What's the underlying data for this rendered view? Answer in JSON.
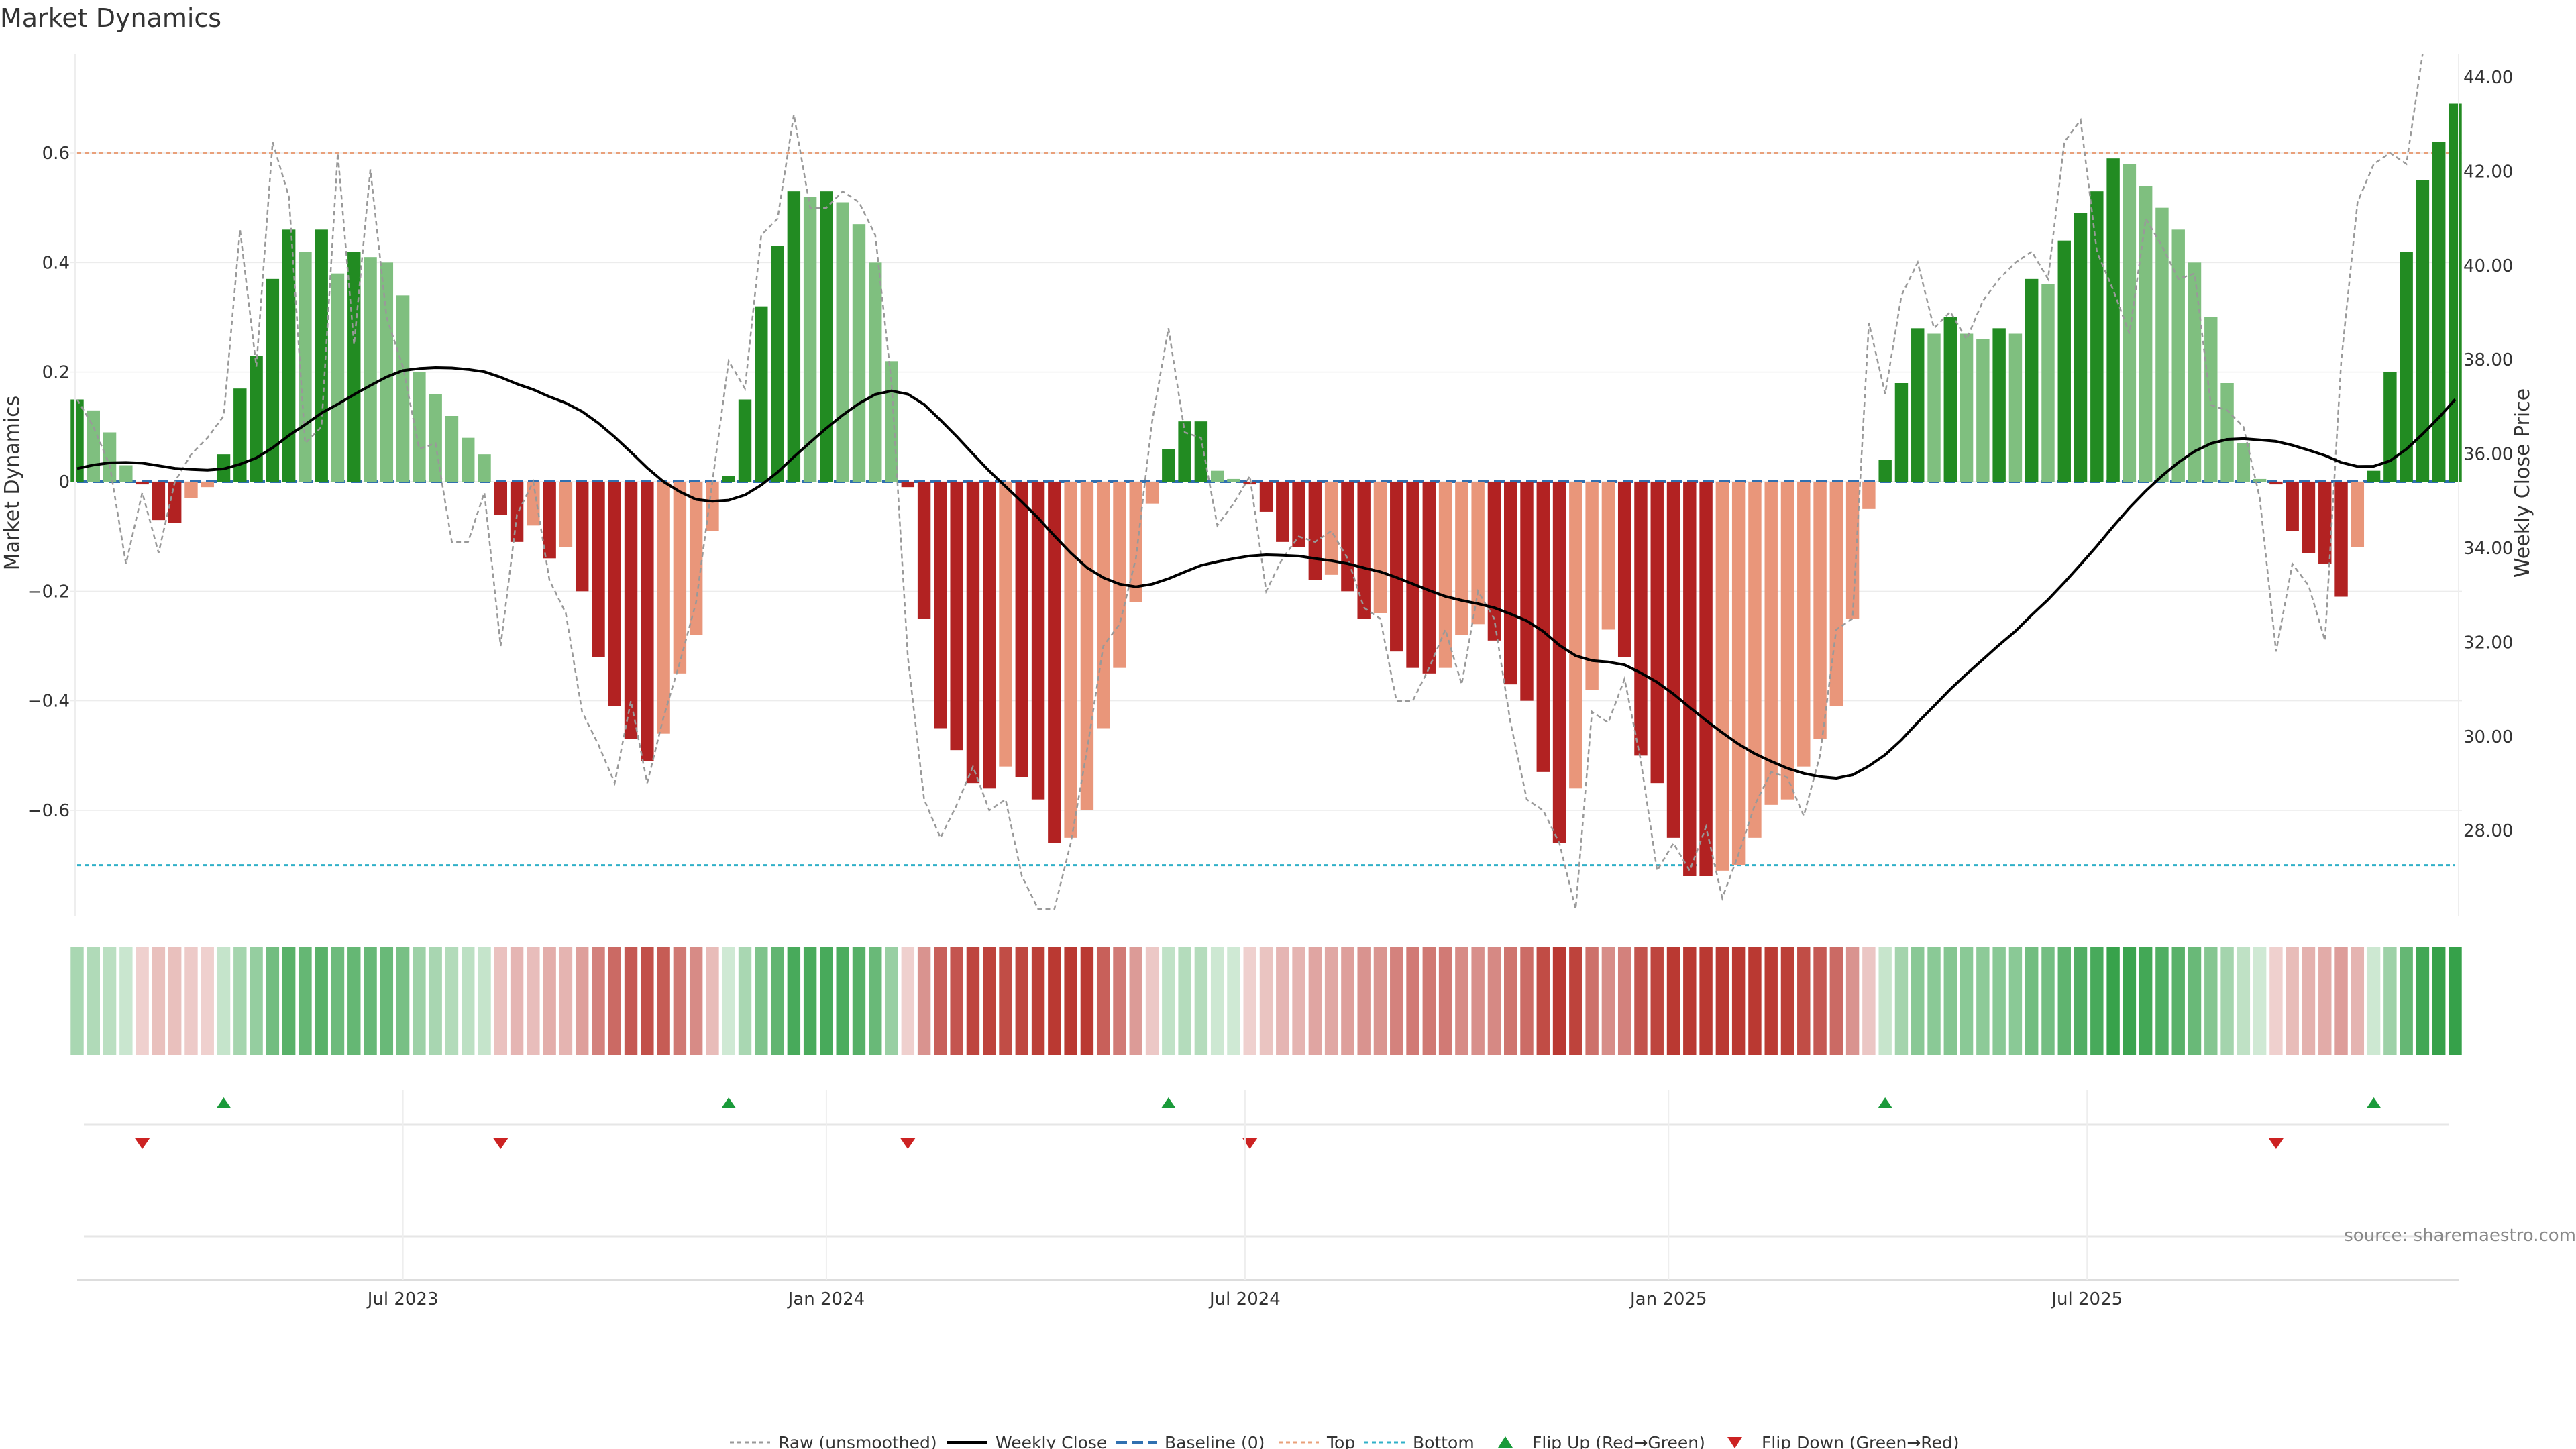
{
  "chart_data": {
    "type": "bar",
    "title": "Market Dynamics",
    "ylabel_left": "Market Dynamics",
    "ylabel_right": "Weekly Close Price",
    "source": "source: sharemaestro.com",
    "ylim_left": [
      -0.78,
      0.78
    ],
    "ylim_right": [
      26.5,
      44.5
    ],
    "yticks_left": [
      0.6,
      0.4,
      0.2,
      0,
      -0.2,
      -0.4,
      -0.6
    ],
    "yticks_left_labels": [
      "0.6",
      "0.4",
      "0.2",
      "0",
      "−0.2",
      "−0.4",
      "−0.6"
    ],
    "yticks_right": [
      44,
      42,
      40,
      38,
      36,
      34,
      32,
      30,
      28
    ],
    "yticks_right_labels": [
      "44.00",
      "42.00",
      "40.00",
      "38.00",
      "36.00",
      "34.00",
      "32.00",
      "30.00",
      "28.00"
    ],
    "xticks": [
      {
        "label": "Jul 2023",
        "week": 20
      },
      {
        "label": "Jan 2024",
        "week": 46
      },
      {
        "label": "Jul 2024",
        "week": 71.7
      },
      {
        "label": "Jan 2025",
        "week": 97.7
      },
      {
        "label": "Jul 2025",
        "week": 123.4
      }
    ],
    "top_level": 0.6,
    "bottom_level": -0.7,
    "baseline": 0,
    "grid": true,
    "legend_position": "bottom-center",
    "colors": {
      "strong_green": "#228B22",
      "light_green": "#7FBF7F",
      "strong_red": "#B22222",
      "light_red": "#E9967A",
      "raw": "#999999",
      "close": "#000000",
      "baseline": "#3070B0",
      "top": "#E9A07A",
      "bottom": "#30B0C8",
      "flip_up": "#1A9A3A",
      "flip_down": "#CC2222"
    },
    "bars": [
      0.15,
      0.13,
      0.09,
      0.03,
      -0.005,
      -0.07,
      -0.075,
      -0.03,
      -0.01,
      0.05,
      0.17,
      0.23,
      0.37,
      0.46,
      0.42,
      0.46,
      0.38,
      0.42,
      0.41,
      0.4,
      0.34,
      0.2,
      0.16,
      0.12,
      0.08,
      0.05,
      -0.06,
      -0.11,
      -0.08,
      -0.14,
      -0.12,
      -0.2,
      -0.32,
      -0.41,
      -0.47,
      -0.51,
      -0.46,
      -0.35,
      -0.28,
      -0.09,
      0.01,
      0.15,
      0.32,
      0.43,
      0.53,
      0.52,
      0.53,
      0.51,
      0.47,
      0.4,
      0.22,
      -0.01,
      -0.25,
      -0.45,
      -0.49,
      -0.55,
      -0.56,
      -0.52,
      -0.54,
      -0.58,
      -0.66,
      -0.65,
      -0.6,
      -0.45,
      -0.34,
      -0.22,
      -0.04,
      0.06,
      0.11,
      0.11,
      0.02,
      0.005,
      -0.005,
      -0.055,
      -0.11,
      -0.12,
      -0.18,
      -0.17,
      -0.2,
      -0.25,
      -0.24,
      -0.31,
      -0.34,
      -0.35,
      -0.34,
      -0.28,
      -0.26,
      -0.29,
      -0.37,
      -0.4,
      -0.53,
      -0.66,
      -0.56,
      -0.38,
      -0.27,
      -0.32,
      -0.5,
      -0.55,
      -0.65,
      -0.72,
      -0.72,
      -0.71,
      -0.7,
      -0.65,
      -0.59,
      -0.58,
      -0.52,
      -0.47,
      -0.41,
      -0.25,
      -0.05,
      0.04,
      0.18,
      0.28,
      0.27,
      0.3,
      0.27,
      0.26,
      0.28,
      0.27,
      0.37,
      0.36,
      0.44,
      0.49,
      0.53,
      0.59,
      0.58,
      0.54,
      0.5,
      0.46,
      0.4,
      0.3,
      0.18,
      0.07,
      0.005,
      -0.005,
      -0.09,
      -0.13,
      -0.15,
      -0.21,
      -0.12,
      0.02,
      0.2,
      0.42,
      0.55,
      0.62,
      0.69
    ],
    "raw": [
      0.15,
      0.1,
      0.03,
      -0.15,
      -0.02,
      -0.13,
      0.0,
      0.05,
      0.08,
      0.12,
      0.46,
      0.21,
      0.62,
      0.52,
      0.07,
      0.1,
      0.6,
      0.25,
      0.57,
      0.3,
      0.21,
      0.06,
      0.07,
      -0.11,
      -0.11,
      -0.02,
      -0.3,
      -0.06,
      0.0,
      -0.18,
      -0.24,
      -0.42,
      -0.48,
      -0.55,
      -0.4,
      -0.55,
      -0.43,
      -0.33,
      -0.22,
      0.0,
      0.22,
      0.17,
      0.45,
      0.48,
      0.67,
      0.5,
      0.5,
      0.53,
      0.51,
      0.45,
      0.18,
      -0.32,
      -0.58,
      -0.65,
      -0.59,
      -0.52,
      -0.6,
      -0.58,
      -0.72,
      -0.79,
      -0.8,
      -0.66,
      -0.49,
      -0.3,
      -0.26,
      -0.14,
      0.11,
      0.28,
      0.09,
      0.08,
      -0.08,
      -0.04,
      0.01,
      -0.2,
      -0.14,
      -0.1,
      -0.11,
      -0.09,
      -0.14,
      -0.23,
      -0.25,
      -0.4,
      -0.4,
      -0.34,
      -0.27,
      -0.37,
      -0.2,
      -0.25,
      -0.44,
      -0.58,
      -0.6,
      -0.66,
      -0.79,
      -0.42,
      -0.44,
      -0.36,
      -0.51,
      -0.71,
      -0.66,
      -0.71,
      -0.63,
      -0.76,
      -0.68,
      -0.59,
      -0.53,
      -0.54,
      -0.61,
      -0.5,
      -0.27,
      -0.25,
      0.29,
      0.16,
      0.34,
      0.4,
      0.28,
      0.31,
      0.26,
      0.33,
      0.37,
      0.4,
      0.42,
      0.37,
      0.62,
      0.66,
      0.42,
      0.35,
      0.27,
      0.48,
      0.43,
      0.37,
      0.38,
      0.14,
      0.13,
      0.1,
      -0.03,
      -0.31,
      -0.15,
      -0.19,
      -0.29,
      0.22,
      0.51,
      0.58,
      0.6,
      0.58,
      0.8
    ]
  },
  "legend": {
    "raw": "Raw (unsmoothed)",
    "close": "Weekly Close",
    "baseline": "Baseline (0)",
    "top": "Top",
    "bottom": "Bottom",
    "flip_up": "Flip Up (Red→Green)",
    "flip_down": "Flip Down (Green→Red)"
  }
}
